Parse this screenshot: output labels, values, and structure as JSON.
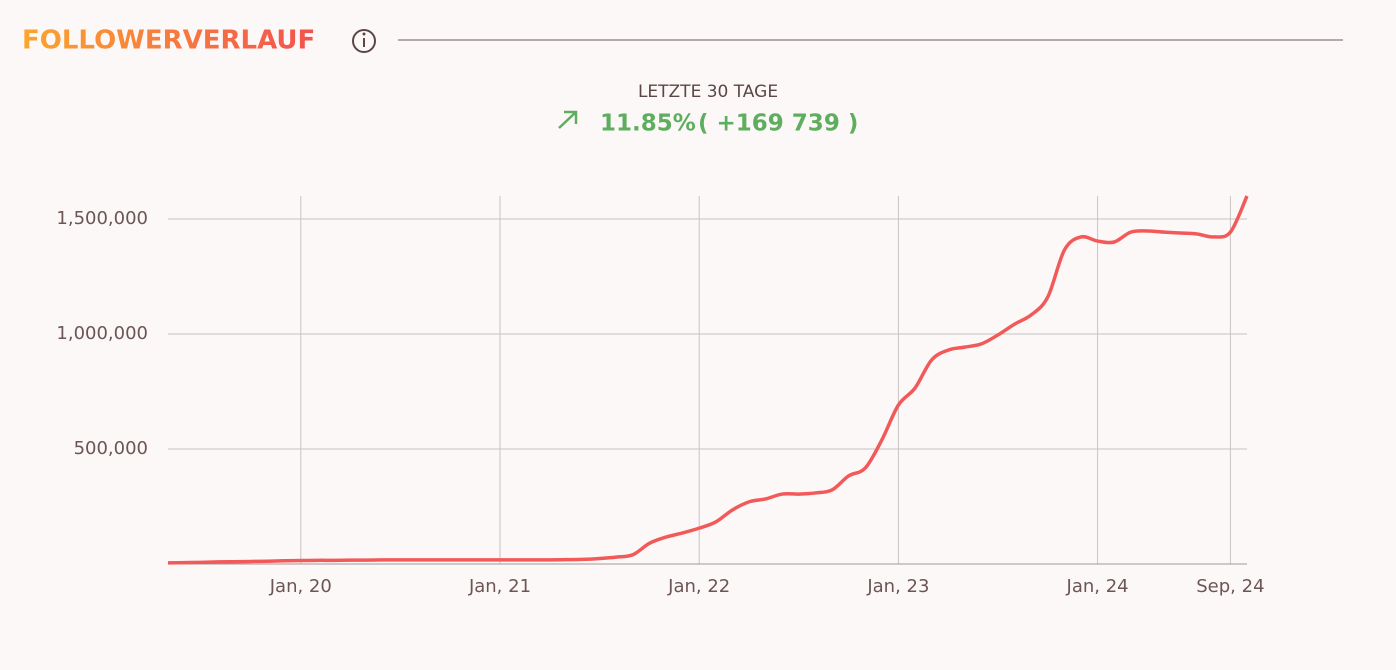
{
  "header": {
    "title": "FOLLOWERVERLAUF"
  },
  "summary": {
    "period": "LETZTE 30 TAGE",
    "change_percent": "11.85%",
    "change_absolute": "( +169 739 )"
  },
  "chart_data": {
    "type": "line",
    "x": [
      "2019-05",
      "2019-06",
      "2019-07",
      "2019-08",
      "2019-09",
      "2019-10",
      "2019-11",
      "2019-12",
      "2020-01",
      "2020-02",
      "2020-03",
      "2020-04",
      "2020-05",
      "2020-06",
      "2020-07",
      "2020-08",
      "2020-09",
      "2020-10",
      "2020-11",
      "2020-12",
      "2021-01",
      "2021-02",
      "2021-03",
      "2021-04",
      "2021-05",
      "2021-06",
      "2021-07",
      "2021-08",
      "2021-09",
      "2021-10",
      "2021-11",
      "2021-12",
      "2022-01",
      "2022-02",
      "2022-03",
      "2022-04",
      "2022-05",
      "2022-06",
      "2022-07",
      "2022-08",
      "2022-09",
      "2022-10",
      "2022-11",
      "2022-12",
      "2023-01",
      "2023-02",
      "2023-03",
      "2023-04",
      "2023-05",
      "2023-06",
      "2023-07",
      "2023-08",
      "2023-09",
      "2023-10",
      "2023-11",
      "2023-12",
      "2024-01",
      "2024-02",
      "2024-03",
      "2024-04",
      "2024-05",
      "2024-06",
      "2024-07",
      "2024-08",
      "2024-09",
      "2024-10"
    ],
    "series": [
      {
        "name": "Follower",
        "color": "#f25a5a",
        "values": [
          5000,
          6000,
          7000,
          9000,
          10000,
          11000,
          12000,
          14000,
          15000,
          16000,
          16000,
          17000,
          17000,
          18000,
          18000,
          18000,
          18000,
          18000,
          18000,
          18000,
          18000,
          18000,
          18000,
          18000,
          19000,
          20000,
          24000,
          30000,
          40000,
          90000,
          117000,
          135000,
          156000,
          183000,
          235000,
          270000,
          283000,
          304000,
          304000,
          309000,
          322000,
          383000,
          417000,
          539000,
          691000,
          765000,
          887000,
          930000,
          943000,
          957000,
          996000,
          1043000,
          1083000,
          1161000,
          1365000,
          1422000,
          1404000,
          1400000,
          1443000,
          1448000,
          1443000,
          1439000,
          1435000,
          1422000,
          1443000,
          1600000
        ]
      }
    ],
    "xlim": [
      "2019-05",
      "2024-10"
    ],
    "xticks": [
      {
        "value": "2020-01",
        "label": "Jan, 20"
      },
      {
        "value": "2021-01",
        "label": "Jan, 21"
      },
      {
        "value": "2022-01",
        "label": "Jan, 22"
      },
      {
        "value": "2023-01",
        "label": "Jan, 23"
      },
      {
        "value": "2024-01",
        "label": "Jan, 24"
      },
      {
        "value": "2024-09",
        "label": "Sep, 24"
      }
    ],
    "ylim": [
      0,
      1600000
    ],
    "yticks": [
      {
        "value": 500000,
        "label": "500,000"
      },
      {
        "value": 1000000,
        "label": "1,000,000"
      },
      {
        "value": 1500000,
        "label": "1,500,000"
      }
    ],
    "grid": true
  }
}
